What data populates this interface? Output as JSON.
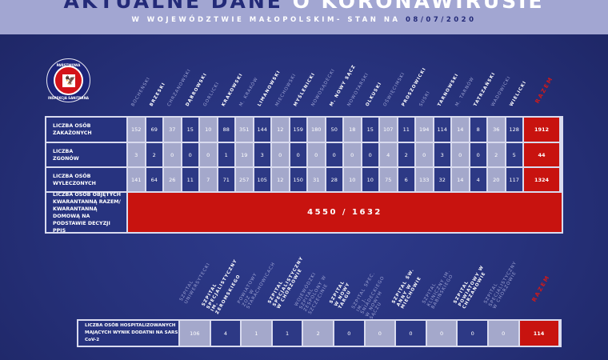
{
  "header": {
    "title_part1": "AKTUALNE DANE",
    "title_part2": "O KORONAWIRUSIE",
    "subtitle": "W WOJEWÓDZTWIE MAŁOPOLSKIM- STAN NA",
    "date": "08/07/2020"
  },
  "logo": {
    "text_top": "PAŃSTWOWA",
    "text_bottom": "INSPEKCJA SANITARNA",
    "icon": "polish-eagle-icon"
  },
  "colors": {
    "light_cell": "#a4a8cb",
    "dark_cell": "#2d3985",
    "total": "#c8130f",
    "background": "#27327c"
  },
  "districts": [
    "BOCHEŃSKI",
    "BRZESKI",
    "CHRZANOWSKI",
    "DĄBROWSKI",
    "GORLICKI",
    "KRAKOWSKI",
    "M. KRAKÓW",
    "LIMANOWSKI",
    "MIECHOWSKI",
    "MYŚLENICKI",
    "NOWOSĄDECKI",
    "M. NOWY SĄCZ",
    "NOWOTARSKI",
    "OLKUSKI",
    "OŚWIĘCIMSKI",
    "PROSZOWICKI",
    "SUSKI",
    "TARNOWSKI",
    "M. TARNÓW",
    "TATRZAŃSKI",
    "WADOWICKI",
    "WIELICKI"
  ],
  "total_label": "RAZEM",
  "rows": [
    {
      "label": "LICZBA OSÓB ZAKAŻONYCH",
      "values": [
        152,
        69,
        37,
        15,
        10,
        88,
        351,
        144,
        12,
        159,
        180,
        50,
        18,
        15,
        107,
        11,
        194,
        114,
        14,
        8,
        36,
        128
      ],
      "total": 1912
    },
    {
      "label": "LICZBA ZGONÓW",
      "values": [
        3,
        2,
        0,
        0,
        0,
        1,
        19,
        3,
        0,
        0,
        0,
        0,
        0,
        0,
        4,
        2,
        0,
        3,
        0,
        0,
        2,
        5
      ],
      "total": 44
    },
    {
      "label": "LICZBA OSÓB WYLECZONYCH",
      "values": [
        141,
        64,
        26,
        11,
        7,
        71,
        257,
        105,
        12,
        150,
        31,
        28,
        10,
        10,
        75,
        6,
        133,
        32,
        14,
        4,
        20,
        117
      ],
      "total": 1324
    }
  ],
  "quarantine": {
    "label": "LICZBA OSÓB OBJĘTYCH KWARANTANNĄ RAZEM/ KWARANTANNĄ DOMOWĄ NA PODSTAWIE DECYZJI PPIS",
    "value": "4550 / 1632"
  },
  "hospitals": [
    "SZPITAL UNIWERSYTECKI",
    "SZPITAL SPECJALISTYCZNY IM. ŻEROMSKIEGO",
    "POWIATOWY ZOZ W STARACHOWICACH",
    "SZPITAL SPECJALISTYCZNY W CHORZOWIE",
    "WOJEWÓDZKI SZPITAL ZESPOLONY W SZCZECINIE",
    "SZPITAL W NOWY TARGU",
    "SZPITAL SPEC. IM. J. ŚNIADECKIEGO W NOWYM SĄCZU",
    "SZPITAL ŚW. ANNY W MIECHOWIE",
    "SZPITAL KLINICZNY IM. BABIŃSKIEGO",
    "SZPITAL POWIATOWY W CHRZANOWIE",
    "SZPITAL SPECJALISTYCZNY W CHORZOWIE"
  ],
  "hospital_row": {
    "label": "LICZBA OSÓB HOSPITALIZOWANYCH MAJĄCYCH WYNIK DODATNI NA SARS CoV-2",
    "values": [
      106,
      4,
      1,
      1,
      2,
      0,
      0,
      0,
      0,
      0,
      0
    ],
    "total": 114
  }
}
